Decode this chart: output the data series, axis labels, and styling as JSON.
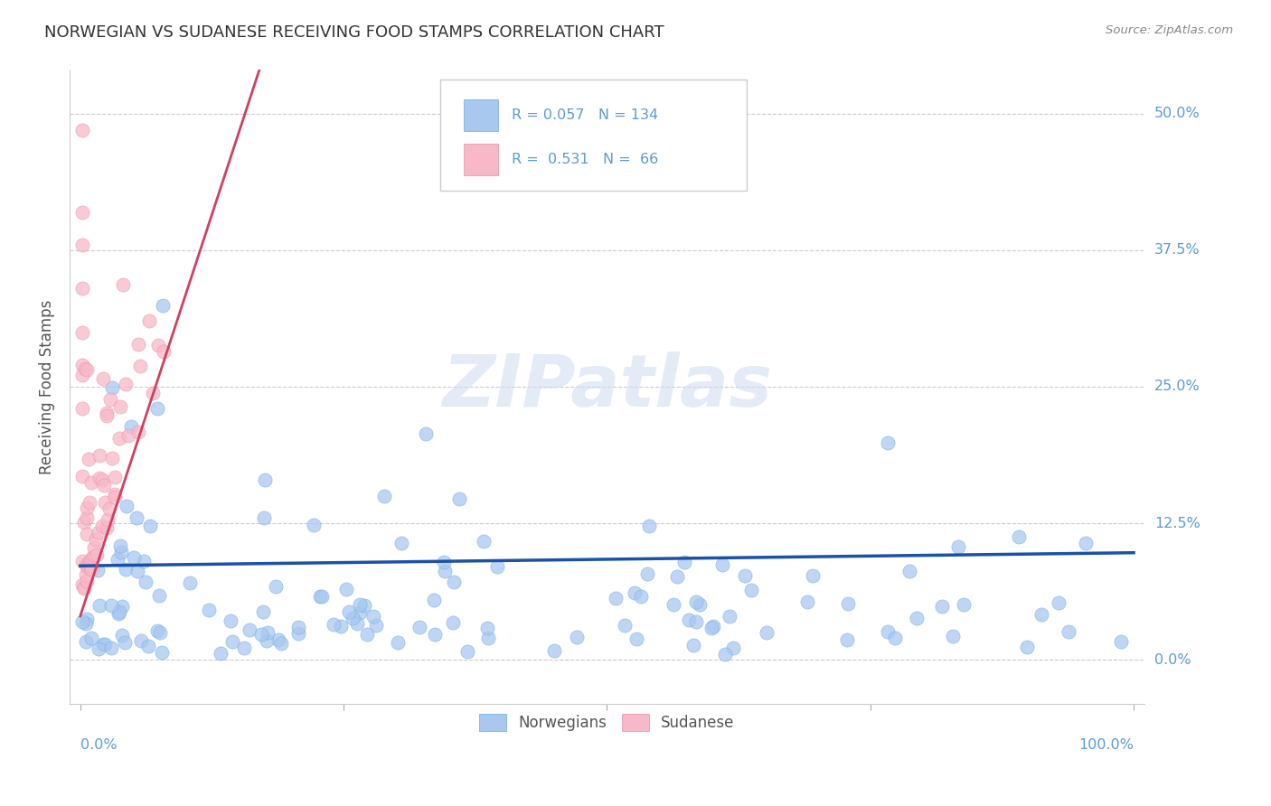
{
  "title": "NORWEGIAN VS SUDANESE RECEIVING FOOD STAMPS CORRELATION CHART",
  "source": "Source: ZipAtlas.com",
  "ylabel": "Receiving Food Stamps",
  "xlim": [
    -0.01,
    1.01
  ],
  "ylim": [
    -0.04,
    0.54
  ],
  "ytick_labels": [
    "0.0%",
    "12.5%",
    "25.0%",
    "37.5%",
    "50.0%"
  ],
  "ytick_values": [
    0.0,
    0.125,
    0.25,
    0.375,
    0.5
  ],
  "legend_blue_R": "0.057",
  "legend_blue_N": "134",
  "legend_pink_R": "0.531",
  "legend_pink_N": "66",
  "blue_color": "#A8C8F0",
  "blue_edge_color": "#6AAAE0",
  "pink_color": "#F8B8C8",
  "pink_edge_color": "#E890A8",
  "blue_line_color": "#1A52A8",
  "pink_line_color": "#D04060",
  "title_color": "#333333",
  "axis_label_color": "#5B9BD5",
  "grid_color": "#CCCCCC",
  "background_color": "#FFFFFF",
  "watermark_color": "#D0DFF0",
  "source_color": "#888888"
}
